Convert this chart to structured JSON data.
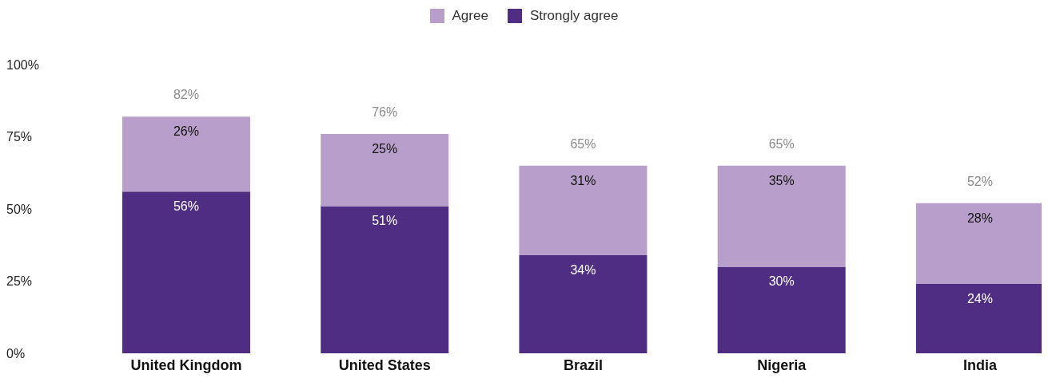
{
  "chart_data": {
    "type": "bar",
    "stacked": true,
    "categories": [
      "United Kingdom",
      "United States",
      "Brazil",
      "Nigeria",
      "India"
    ],
    "series": [
      {
        "name": "Strongly agree",
        "color": "#4f2d82",
        "values": [
          56,
          51,
          34,
          30,
          24
        ],
        "value_labels": [
          "56%",
          "51%",
          "34%",
          "30%",
          "24%"
        ]
      },
      {
        "name": "Agree",
        "color": "#b89fcb",
        "values": [
          26,
          25,
          31,
          35,
          28
        ],
        "value_labels": [
          "26%",
          "25%",
          "31%",
          "35%",
          "28%"
        ]
      }
    ],
    "ylim": [
      0,
      100
    ],
    "yticks": [
      {
        "value": 0,
        "label": "0%"
      },
      {
        "value": 25,
        "label": "25%"
      },
      {
        "value": 50,
        "label": "50%"
      },
      {
        "value": 75,
        "label": "75%"
      },
      {
        "value": 100,
        "label": "100%"
      }
    ],
    "totals": [
      "82%",
      "76%",
      "65%",
      "65%",
      "52%"
    ],
    "legend": "top",
    "grid": false
  }
}
